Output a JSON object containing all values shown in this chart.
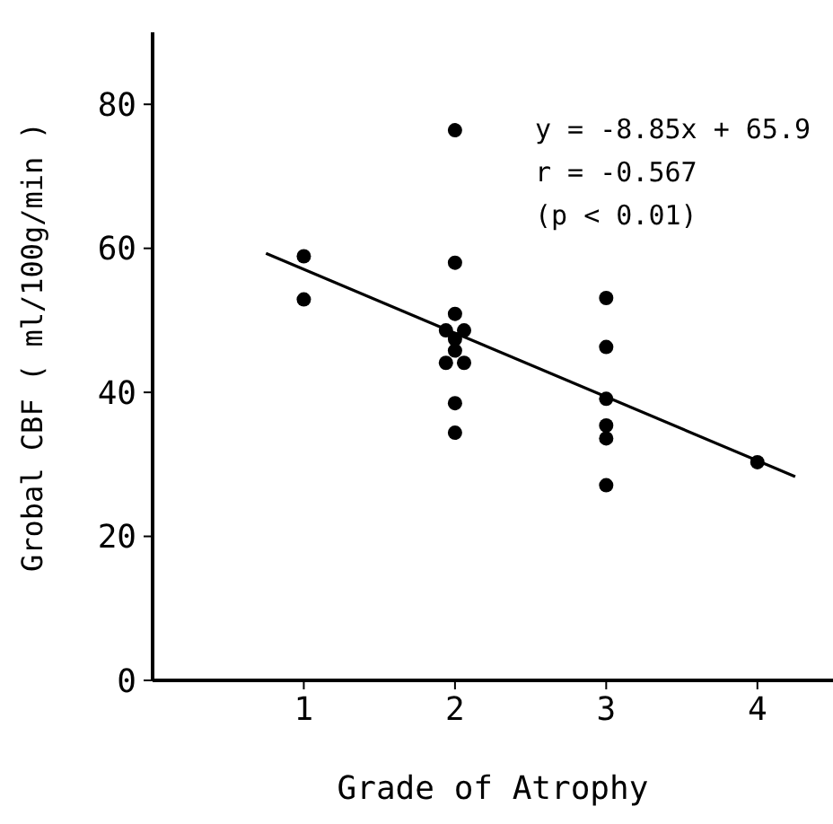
{
  "chart_data": {
    "type": "scatter",
    "xlabel": "Grade of Atrophy",
    "ylabel": "Grobal CBF ( ml/100g/min )",
    "xlim": [
      0,
      4.5
    ],
    "xticks": [
      1,
      2,
      3,
      4
    ],
    "ylim": [
      0,
      90
    ],
    "yticks": [
      0,
      20,
      40,
      60,
      80
    ],
    "grid": false,
    "marker": "circle",
    "series": [
      {
        "color": "#000000",
        "x": [
          1,
          1,
          2,
          2,
          2,
          1.94,
          2.06,
          2,
          2,
          1.94,
          2.06,
          2,
          2,
          3,
          3,
          3,
          3,
          3,
          3,
          4
        ],
        "values": [
          58.9,
          52.9,
          76.4,
          58.0,
          50.9,
          48.6,
          48.6,
          47.4,
          45.8,
          44.1,
          44.1,
          38.5,
          34.4,
          53.1,
          46.3,
          39.1,
          35.4,
          33.6,
          27.1,
          30.3
        ]
      },
      {
        "type": "line",
        "color": "#000000",
        "marker": "none",
        "line_style": "solid",
        "x": [
          0.75,
          4.25
        ],
        "values": [
          59.3,
          28.3
        ]
      }
    ],
    "annotations": [
      "y = -8.85x + 65.9",
      "r = -0.567",
      "(p < 0.01)"
    ]
  }
}
